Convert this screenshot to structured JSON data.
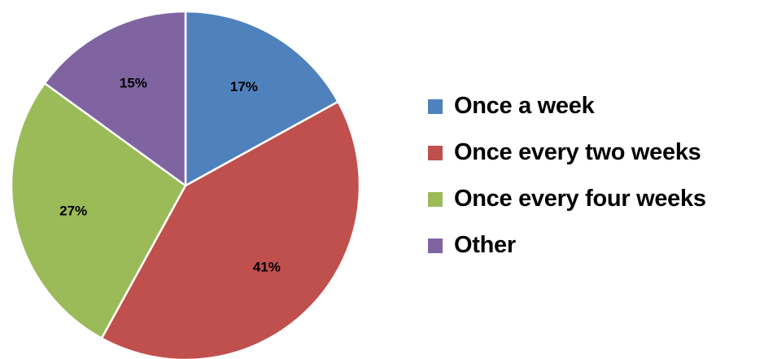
{
  "chart_data": {
    "type": "pie",
    "title": "",
    "start_angle_deg": 0,
    "direction": "clockwise",
    "slices": [
      {
        "label": "Once a week",
        "value": 17,
        "display": "17%",
        "color": "#4f81bd"
      },
      {
        "label": "Once every two weeks",
        "value": 41,
        "display": "41%",
        "color": "#c0504d"
      },
      {
        "label": "Once every four weeks",
        "value": 27,
        "display": "27%",
        "color": "#9bbb59"
      },
      {
        "label": "Other",
        "value": 15,
        "display": "15%",
        "color": "#8064a2"
      }
    ],
    "legend": {
      "position": "right",
      "entries": [
        "Once a week",
        "Once every two weeks",
        "Once every four weeks",
        "Other"
      ]
    }
  }
}
